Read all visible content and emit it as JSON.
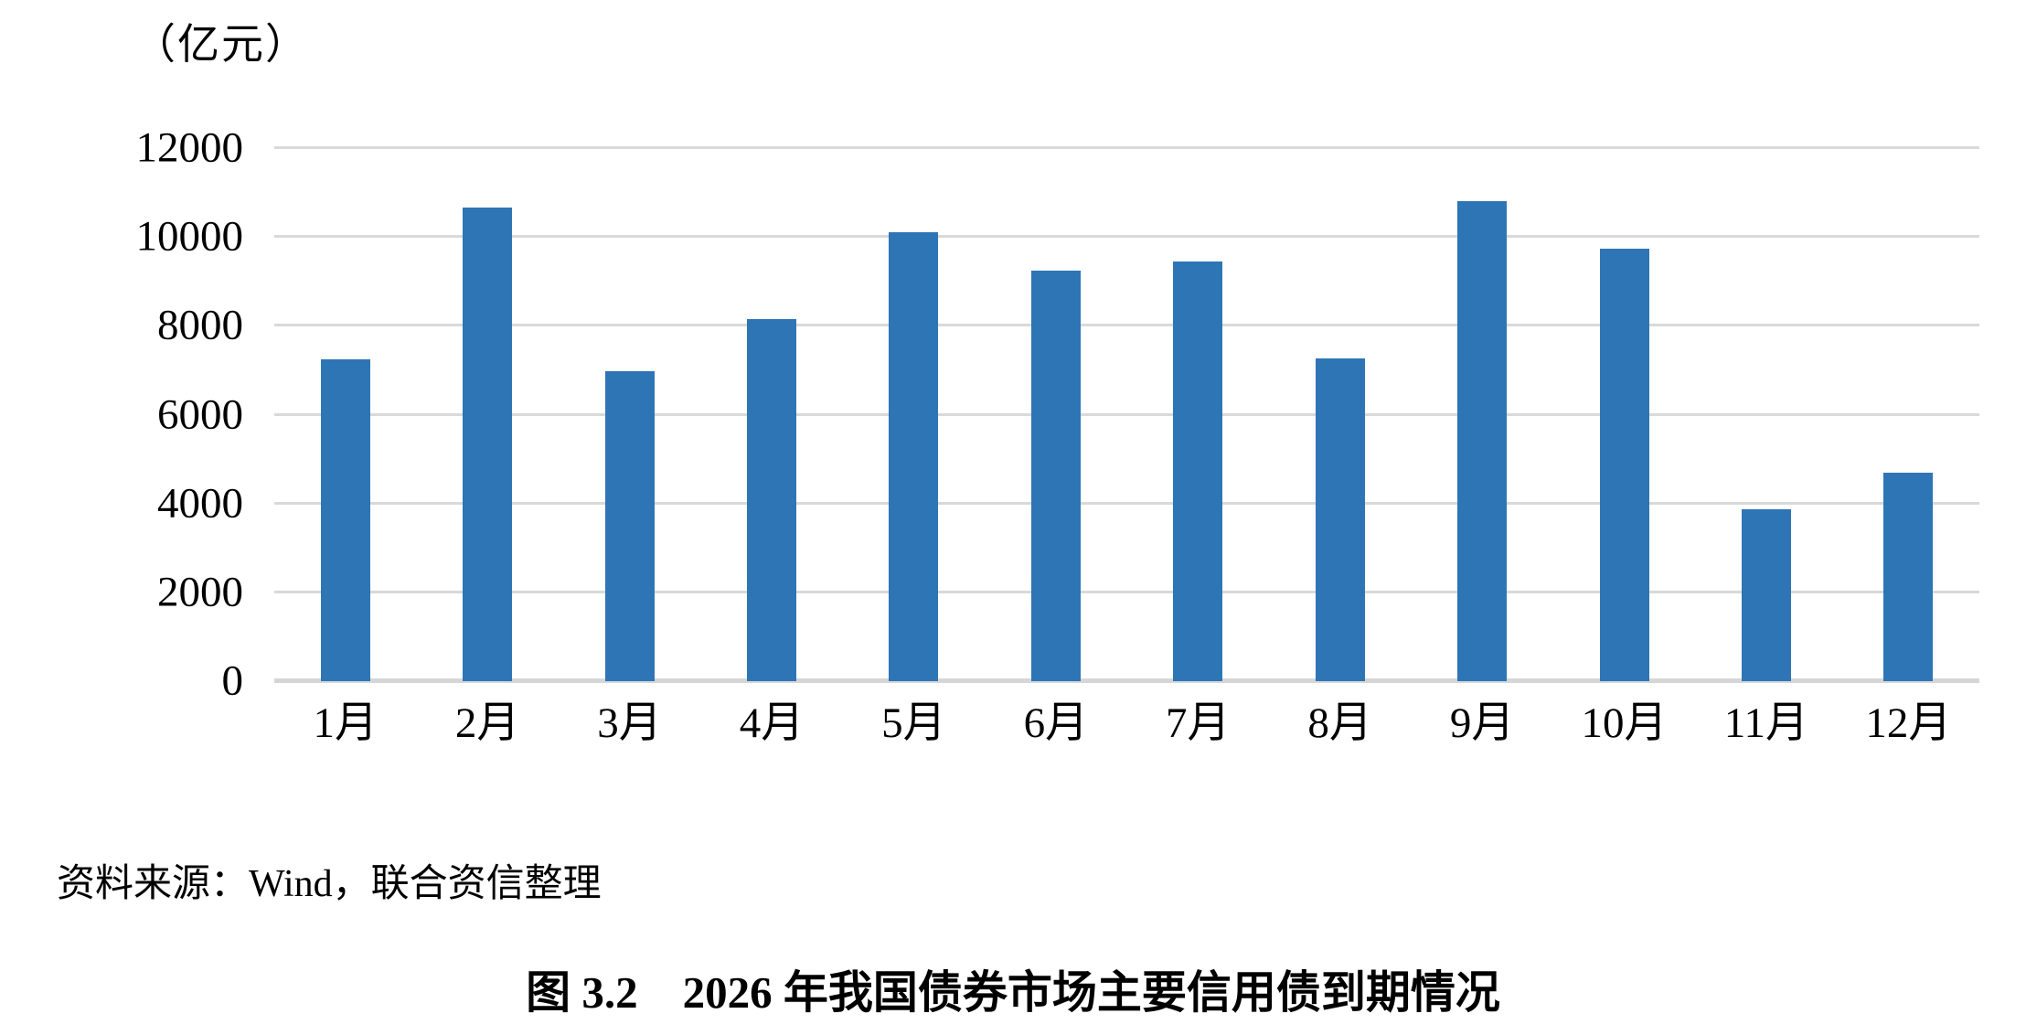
{
  "unit_label": "（亿元）",
  "source_note": "资料来源：Wind，联合资信整理",
  "caption": "图 3.2　2026 年我国债券市场主要信用债到期情况",
  "colors": {
    "bar": "#2E75B6",
    "gridline": "#D9D9D9",
    "axis_line": "#D6D6D6",
    "text": "#000000",
    "background": "#FFFFFF"
  },
  "chart_data": {
    "type": "bar",
    "title": "图 3.2　2026 年我国债券市场主要信用债到期情况",
    "ylabel": "（亿元）",
    "xlabel": "",
    "categories": [
      "1月",
      "2月",
      "3月",
      "4月",
      "5月",
      "6月",
      "7月",
      "8月",
      "9月",
      "10月",
      "11月",
      "12月"
    ],
    "values": [
      7250,
      10670,
      6980,
      8160,
      10100,
      9250,
      9440,
      7270,
      10810,
      9740,
      3880,
      4690
    ],
    "ylim": [
      0,
      12000
    ],
    "yticks": [
      0,
      2000,
      4000,
      6000,
      8000,
      10000,
      12000
    ],
    "grid": "horizontal",
    "legend": "none"
  }
}
